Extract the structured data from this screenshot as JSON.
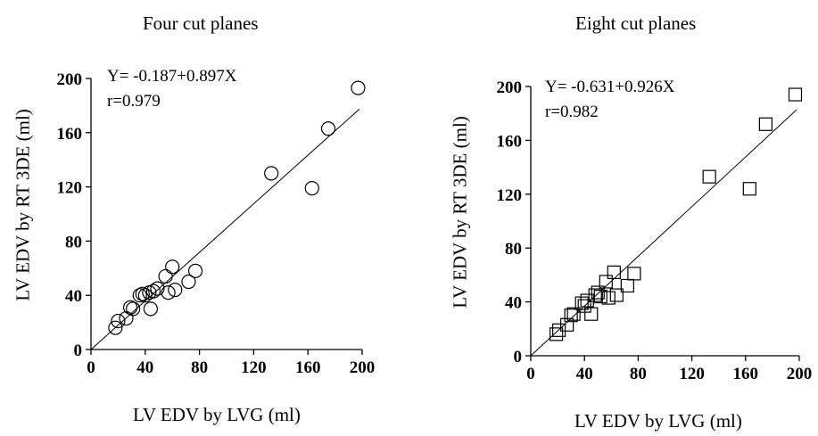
{
  "chart_data": [
    {
      "type": "scatter",
      "title": "Four cut planes",
      "xlabel": "LV EDV by LVG (ml)",
      "ylabel": "LV EDV by RT 3DE (ml)",
      "equation": "Y= -0.187+0.897X",
      "r": "r=0.979",
      "marker": "circle",
      "xlim": [
        0,
        200
      ],
      "ylim": [
        0,
        200
      ],
      "xticks": [
        0,
        40,
        80,
        120,
        160,
        200
      ],
      "yticks": [
        0,
        40,
        80,
        120,
        160,
        200
      ],
      "regression": {
        "intercept": -0.187,
        "slope": 0.897
      },
      "points": [
        [
          18,
          16
        ],
        [
          20,
          21
        ],
        [
          26,
          23
        ],
        [
          29,
          31
        ],
        [
          31,
          30
        ],
        [
          36,
          40
        ],
        [
          38,
          41
        ],
        [
          40,
          40
        ],
        [
          43,
          42
        ],
        [
          44,
          30
        ],
        [
          46,
          43
        ],
        [
          49,
          45
        ],
        [
          55,
          54
        ],
        [
          57,
          42
        ],
        [
          60,
          61
        ],
        [
          62,
          44
        ],
        [
          72,
          50
        ],
        [
          77,
          58
        ],
        [
          133,
          130
        ],
        [
          163,
          119
        ],
        [
          175,
          163
        ],
        [
          197,
          193
        ]
      ]
    },
    {
      "type": "scatter",
      "title": "Eight cut planes",
      "xlabel": "LV EDV by LVG (ml)",
      "ylabel": "LV EDV by RT 3DE (ml)",
      "equation": "Y= -0.631+0.926X",
      "r": "r=0.982",
      "marker": "square",
      "xlim": [
        0,
        200
      ],
      "ylim": [
        0,
        200
      ],
      "xticks": [
        0,
        40,
        80,
        120,
        160,
        200
      ],
      "yticks": [
        0,
        40,
        80,
        120,
        160,
        200
      ],
      "regression": {
        "intercept": -0.631,
        "slope": 0.926
      },
      "points": [
        [
          19,
          16
        ],
        [
          21,
          19
        ],
        [
          27,
          23
        ],
        [
          30,
          30
        ],
        [
          32,
          31
        ],
        [
          38,
          39
        ],
        [
          40,
          37
        ],
        [
          42,
          41
        ],
        [
          45,
          31
        ],
        [
          48,
          45
        ],
        [
          50,
          47
        ],
        [
          52,
          44
        ],
        [
          56,
          55
        ],
        [
          58,
          43
        ],
        [
          62,
          62
        ],
        [
          64,
          45
        ],
        [
          72,
          52
        ],
        [
          77,
          61
        ],
        [
          133,
          133
        ],
        [
          163,
          124
        ],
        [
          175,
          172
        ],
        [
          197,
          194
        ]
      ]
    }
  ]
}
